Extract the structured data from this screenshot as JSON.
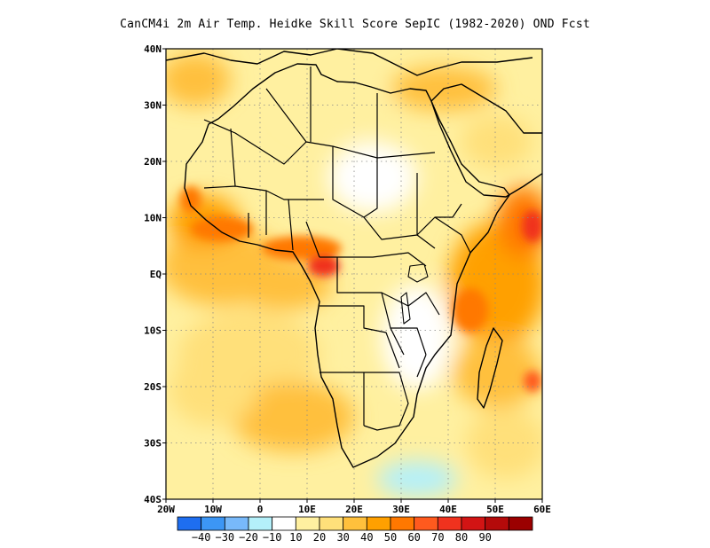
{
  "title": "CanCM4i  2m Air Temp. Heidke Skill Score SepIC (1982-2020) OND Fcst",
  "map": {
    "lon_range": [
      -20,
      60
    ],
    "lat_range": [
      -40,
      40
    ],
    "lon_ticks": [
      {
        "value": -20,
        "label": "20W"
      },
      {
        "value": -10,
        "label": "10W"
      },
      {
        "value": 0,
        "label": "0"
      },
      {
        "value": 10,
        "label": "10E"
      },
      {
        "value": 20,
        "label": "20E"
      },
      {
        "value": 30,
        "label": "30E"
      },
      {
        "value": 40,
        "label": "40E"
      },
      {
        "value": 50,
        "label": "50E"
      },
      {
        "value": 60,
        "label": "60E"
      }
    ],
    "lat_ticks": [
      {
        "value": 40,
        "label": "40N"
      },
      {
        "value": 30,
        "label": "30N"
      },
      {
        "value": 20,
        "label": "20N"
      },
      {
        "value": 10,
        "label": "10N"
      },
      {
        "value": 0,
        "label": "EQ"
      },
      {
        "value": -10,
        "label": "10S"
      },
      {
        "value": -20,
        "label": "20S"
      },
      {
        "value": -30,
        "label": "30S"
      },
      {
        "value": -40,
        "label": "40S"
      }
    ],
    "grid": true
  },
  "colorbar": {
    "colors": [
      "#1e6ef0",
      "#3c96f5",
      "#78b9fa",
      "#b4f0fa",
      "#ffffff",
      "#fff0a0",
      "#ffe07a",
      "#ffc03c",
      "#ffa000",
      "#ff7800",
      "#ff5a1e",
      "#f0321e",
      "#d21414",
      "#b40a0a",
      "#9b0000"
    ],
    "labels": [
      "-40",
      "-30",
      "-20",
      "-10",
      "10",
      "20",
      "30",
      "40",
      "50",
      "60",
      "70",
      "80",
      "90"
    ]
  },
  "field_samples": [
    {
      "lon": 10,
      "lat": 2,
      "value": 70,
      "name": "gulf-of-guinea-coast"
    },
    {
      "lon": -10,
      "lat": 8,
      "value": 60,
      "name": "west-africa-coast"
    },
    {
      "lon": 57,
      "lat": 10,
      "value": 70,
      "name": "arabian-sea"
    },
    {
      "lon": 48,
      "lat": -10,
      "value": 50,
      "name": "western-indian-ocean"
    },
    {
      "lon": 10,
      "lat": -25,
      "value": 40,
      "name": "southeast-atlantic"
    },
    {
      "lon": 28,
      "lat": 28,
      "value": 10,
      "name": "egypt-libya"
    },
    {
      "lon": 40,
      "lat": -38,
      "value": -10,
      "name": "south-of-africa"
    },
    {
      "lon": 30,
      "lat": 0,
      "value": 20,
      "name": "east-africa-lakes"
    }
  ]
}
